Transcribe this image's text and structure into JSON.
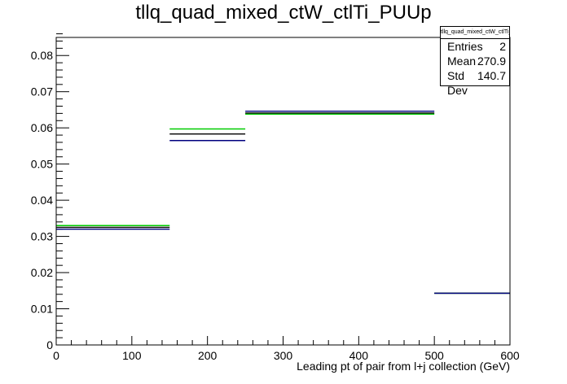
{
  "title": "tllq_quad_mixed_ctW_ctlTi_PUUp",
  "stats": {
    "name": "tllq_quad_mixed_ctW_ctlTi_PUUp",
    "entries_label": "Entries",
    "entries_value": "2",
    "mean_label": "Mean",
    "mean_value": "270.9",
    "stddev_label": "Std Dev",
    "stddev_value": "140.7"
  },
  "chart_data": {
    "type": "histogram",
    "title": "tllq_quad_mixed_ctW_ctlTi_PUUp",
    "xlabel": "Leading pt of pair from l+j collection (GeV)",
    "ylabel": "",
    "xlim": [
      0,
      600
    ],
    "ylim": [
      0,
      0.085
    ],
    "xticks": [
      0,
      100,
      200,
      300,
      400,
      500,
      600
    ],
    "yticks": [
      0,
      0.01,
      0.02,
      0.03,
      0.04,
      0.05,
      0.06,
      0.07,
      0.08
    ],
    "bin_edges": [
      0,
      150,
      250,
      500,
      600
    ],
    "series": [
      {
        "color": "#00cc00",
        "values": [
          0.033,
          0.0597,
          0.0638,
          0.0143
        ]
      },
      {
        "color": "#000000",
        "values": [
          0.0325,
          0.0583,
          0.0641,
          0.0143
        ]
      },
      {
        "color": "#00007f",
        "values": [
          0.032,
          0.0565,
          0.0646,
          0.0143
        ]
      }
    ]
  }
}
